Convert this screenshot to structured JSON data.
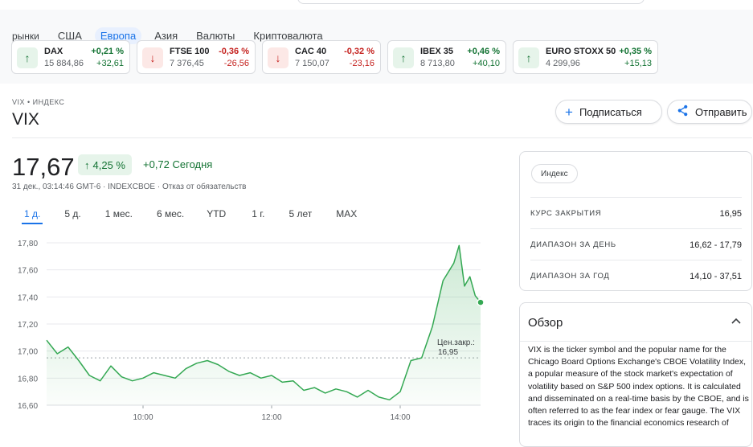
{
  "tabs": [
    "рынки",
    "США",
    "Европа",
    "Азия",
    "Валюты",
    "Криптовалюта"
  ],
  "active_tab": 2,
  "market_cards": [
    {
      "name": "DAX",
      "price": "15 884,86",
      "pct": "+0,21 %",
      "chg": "+32,61",
      "dir": "up"
    },
    {
      "name": "FTSE 100",
      "price": "7 376,45",
      "pct": "-0,36 %",
      "chg": "-26,56",
      "dir": "down"
    },
    {
      "name": "CAC 40",
      "price": "7 150,07",
      "pct": "-0,32 %",
      "chg": "-23,16",
      "dir": "down"
    },
    {
      "name": "IBEX 35",
      "price": "8 713,80",
      "pct": "+0,46 %",
      "chg": "+40,10",
      "dir": "up"
    },
    {
      "name": "EURO STOXX 50",
      "price": "4 299,96",
      "pct": "+0,35 %",
      "chg": "+15,13",
      "dir": "up"
    }
  ],
  "header": {
    "breadcrumb": "VIX • ИНДЕКС",
    "ticker": "VIX",
    "subscribe_label": "Подписаться",
    "share_label": "Отправить",
    "subscribe_icon": "plus-icon",
    "share_icon": "share-icon"
  },
  "quote": {
    "price": "17,67",
    "change_pct": "4,25 %",
    "change_today": "+0,72 Сегодня",
    "meta": "31 дек., 03:14:46 GMT-6 · INDEXCBOE · Отказ от обязательств"
  },
  "ranges": [
    "1 д.",
    "5 д.",
    "1 мес.",
    "6 мес.",
    "YTD",
    "1 г.",
    "5 лет",
    "MAX"
  ],
  "active_range": 0,
  "stats": {
    "tag": "Индекс",
    "rows": [
      {
        "label": "КУРС ЗАКРЫТИЯ",
        "value": "16,95"
      },
      {
        "label": "ДИАПАЗОН ЗА ДЕНЬ",
        "value": "16,62 - 17,79"
      },
      {
        "label": "ДИАПАЗОН ЗА ГОД",
        "value": "14,10 - 37,51"
      }
    ]
  },
  "overview": {
    "title": "Обзор",
    "text": "VIX is the ticker symbol and the popular name for the Chicago Board Options Exchange's CBOE Volatility Index, a popular measure of the stock market's expectation of volatility based on S&P 500 index options. It is calculated and disseminated on a real-time basis by the CBOE, and is often referred to as the fear index or fear gauge. The VIX traces its origin to the financial economics research of"
  },
  "colors": {
    "up": "#137333",
    "down": "#c5221f",
    "accent": "#1a73e8",
    "line": "#34a853"
  },
  "chart_data": {
    "type": "area",
    "yticks": [
      "17,80",
      "17,60",
      "17,40",
      "17,20",
      "17,00",
      "16,80",
      "16,60"
    ],
    "xticks": [
      "10:00",
      "12:00",
      "14:00"
    ],
    "ylim": [
      16.6,
      17.8
    ],
    "xlim": [
      "08:30",
      "15:15"
    ],
    "previous_close": {
      "label": "Цен.закр.:",
      "value": 16.95
    },
    "x": [
      "08:30",
      "08:40",
      "08:50",
      "09:00",
      "09:10",
      "09:20",
      "09:30",
      "09:40",
      "09:50",
      "10:00",
      "10:10",
      "10:20",
      "10:30",
      "10:40",
      "10:50",
      "11:00",
      "11:10",
      "11:20",
      "11:30",
      "11:40",
      "11:50",
      "12:00",
      "12:10",
      "12:20",
      "12:30",
      "12:40",
      "12:50",
      "13:00",
      "13:10",
      "13:20",
      "13:30",
      "13:40",
      "13:50",
      "14:00",
      "14:10",
      "14:20",
      "14:30",
      "14:40",
      "14:50",
      "14:55",
      "15:00",
      "15:05",
      "15:10",
      "15:15"
    ],
    "y": [
      17.08,
      16.98,
      17.03,
      16.93,
      16.82,
      16.78,
      16.89,
      16.81,
      16.78,
      16.8,
      16.84,
      16.82,
      16.8,
      16.87,
      16.91,
      16.93,
      16.9,
      16.85,
      16.82,
      16.84,
      16.8,
      16.82,
      16.77,
      16.78,
      16.71,
      16.73,
      16.69,
      16.72,
      16.7,
      16.66,
      16.71,
      16.66,
      16.64,
      16.7,
      16.93,
      16.95,
      17.18,
      17.52,
      17.65,
      17.78,
      17.48,
      17.55,
      17.41,
      17.36
    ]
  }
}
